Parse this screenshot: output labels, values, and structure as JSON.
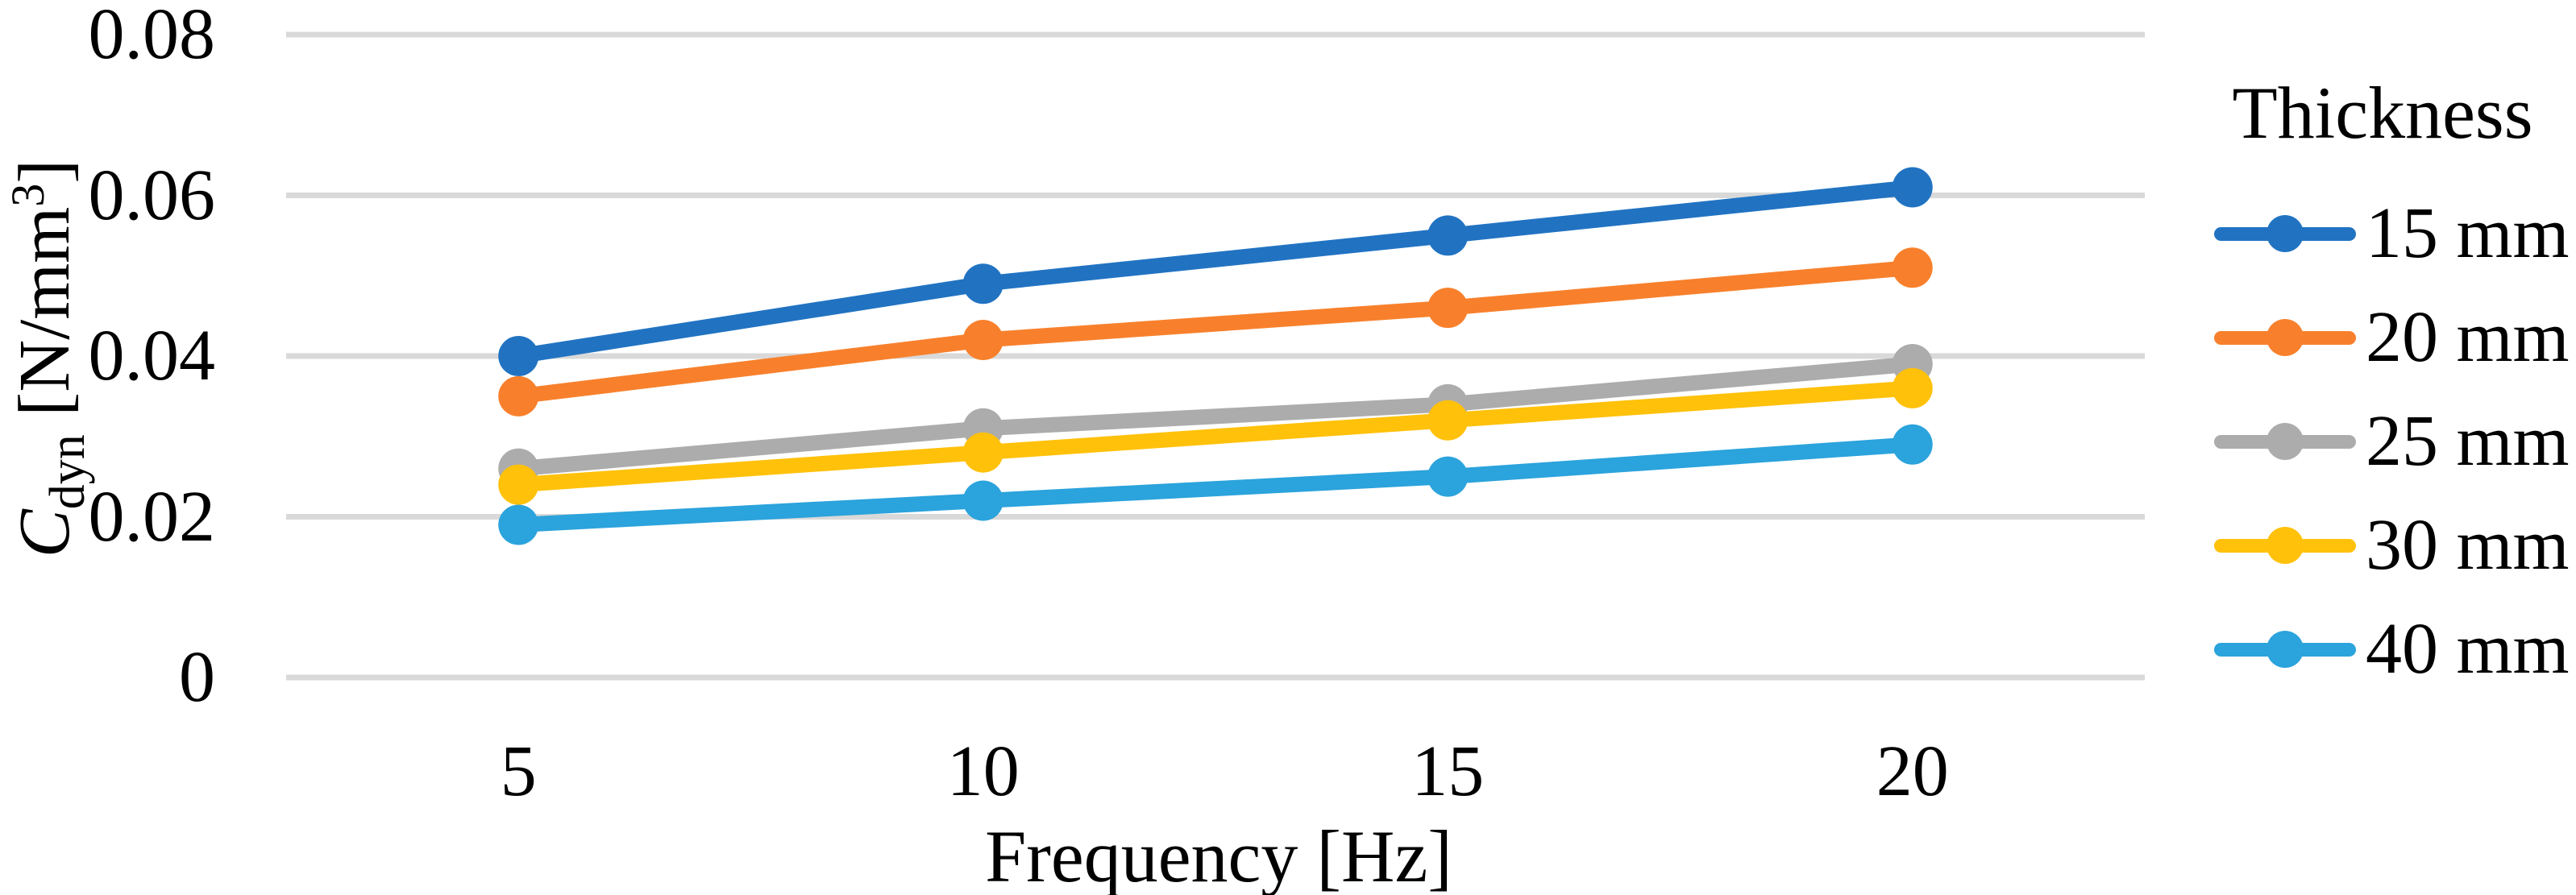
{
  "chart_data": {
    "type": "line",
    "title": "",
    "xlabel": "Frequency [Hz]",
    "ylabel": "C_dyn [N/mm³]",
    "ylabel_parts": {
      "symbol": "C",
      "subscript": "dyn",
      "unit_prefix": " [N/mm",
      "unit_sup": "3",
      "unit_suffix": "]"
    },
    "categories": [
      "5",
      "10",
      "15",
      "20"
    ],
    "x_values": [
      5,
      10,
      15,
      20
    ],
    "ylim": [
      0,
      0.08
    ],
    "yticks": [
      0,
      0.02,
      0.04,
      0.06,
      0.08
    ],
    "ytick_labels": [
      "0",
      "0.02",
      "0.04",
      "0.06",
      "0.08"
    ],
    "grid": true,
    "gridline_color": "#D9D9D9",
    "legend_title": "Thickness",
    "legend_position": "right",
    "series": [
      {
        "name": "15 mm",
        "color": "#2173C2",
        "values": [
          0.04,
          0.049,
          0.055,
          0.061
        ]
      },
      {
        "name": "20 mm",
        "color": "#F8802C",
        "values": [
          0.035,
          0.042,
          0.046,
          0.051
        ]
      },
      {
        "name": "25 mm",
        "color": "#ACACAC",
        "values": [
          0.026,
          0.031,
          0.034,
          0.039
        ]
      },
      {
        "name": "30 mm",
        "color": "#FFC10A",
        "values": [
          0.024,
          0.028,
          0.032,
          0.036
        ]
      },
      {
        "name": "40 mm",
        "color": "#2BA3DC",
        "values": [
          0.019,
          0.022,
          0.025,
          0.029
        ]
      }
    ]
  }
}
